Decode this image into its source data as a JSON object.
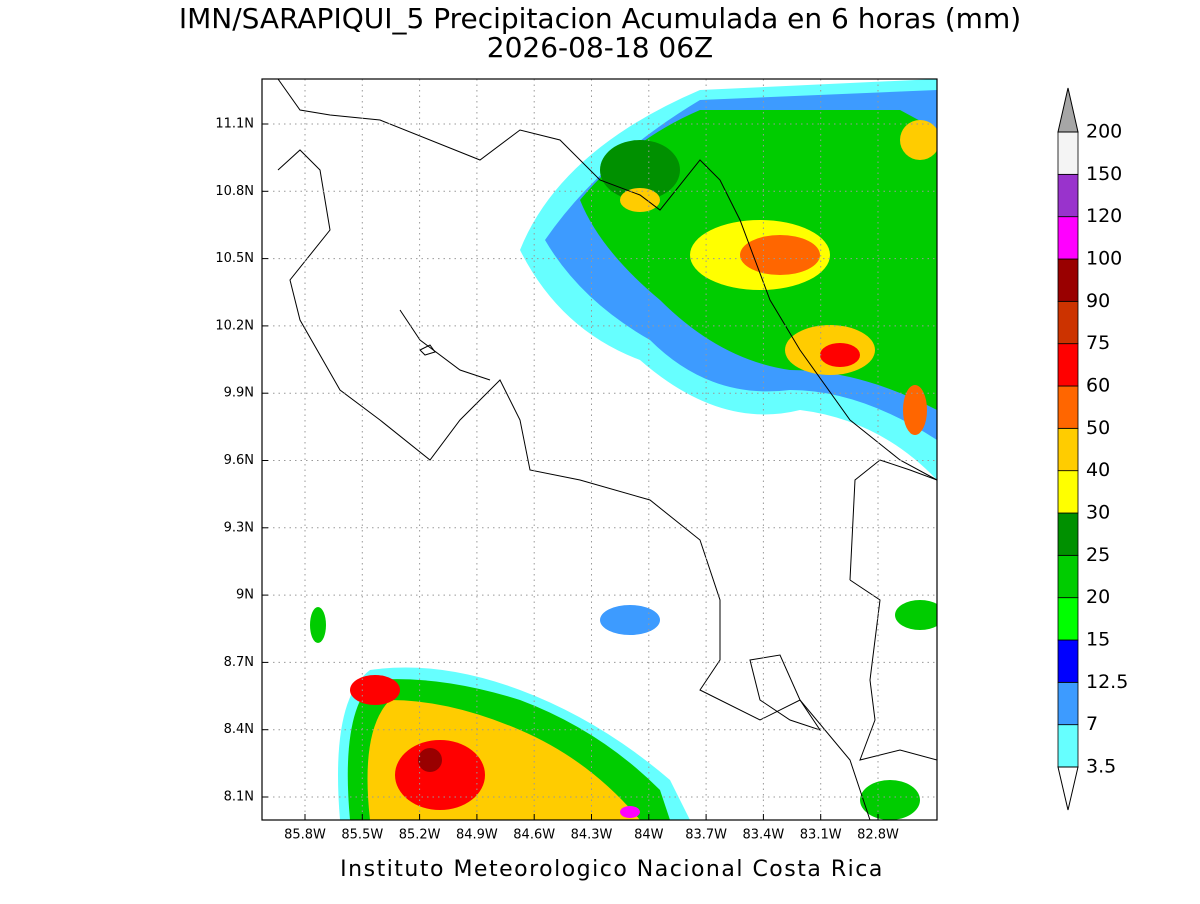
{
  "title": "IMN/SARAPIQUI_5 Precipitacion Acumulada en 6 horas (mm)",
  "subtitle": "2026-08-18 06Z",
  "lat_labels": [
    "11.1N",
    "10.8N",
    "10.5N",
    "10.2N",
    "9.9N",
    "9.6N",
    "9.3N",
    "9N",
    "8.7N",
    "8.4N",
    "8.1N"
  ],
  "lon_labels": [
    "85.8W",
    "85.5W",
    "85.2W",
    "84.9W",
    "84.6W",
    "84.3W",
    "84W",
    "83.7W",
    "83.4W",
    "83.1W",
    "82.8W"
  ],
  "colorbar": {
    "levels": [
      3.5,
      7,
      12.5,
      15,
      20,
      25,
      30,
      40,
      50,
      60,
      75,
      90,
      100,
      120,
      150,
      200
    ],
    "colors": [
      "#66ffff",
      "#3d9bff",
      "#0000ff",
      "#00ff00",
      "#00cc00",
      "#009000",
      "#ffff00",
      "#ffcc00",
      "#ff6600",
      "#ff0000",
      "#cc3300",
      "#990000",
      "#ff00ff",
      "#9933cc",
      "#f4f4f4"
    ],
    "under_color": "#ffffff",
    "over_color": "#a6a6a6"
  },
  "footer": "Instituto Meteorologico Nacional Costa Rica"
}
